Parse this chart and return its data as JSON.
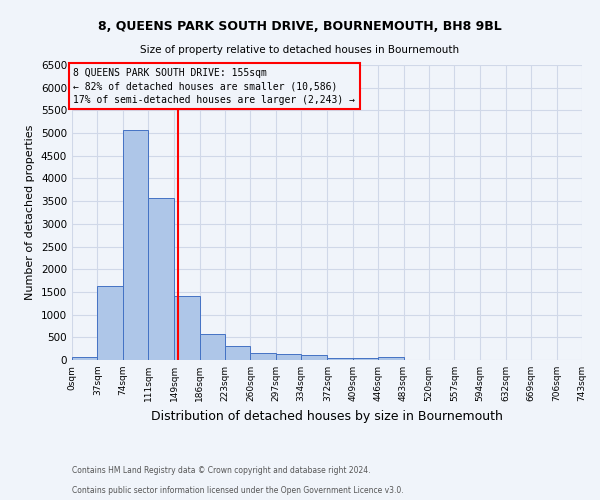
{
  "title1": "8, QUEENS PARK SOUTH DRIVE, BOURNEMOUTH, BH8 9BL",
  "title2": "Size of property relative to detached houses in Bournemouth",
  "xlabel": "Distribution of detached houses by size in Bournemouth",
  "ylabel": "Number of detached properties",
  "footnote1": "Contains HM Land Registry data © Crown copyright and database right 2024.",
  "footnote2": "Contains public sector information licensed under the Open Government Licence v3.0.",
  "annotation_line1": "8 QUEENS PARK SOUTH DRIVE: 155sqm",
  "annotation_line2": "← 82% of detached houses are smaller (10,586)",
  "annotation_line3": "17% of semi-detached houses are larger (2,243) →",
  "property_size": 155,
  "bin_edges": [
    0,
    37,
    74,
    111,
    149,
    186,
    223,
    260,
    297,
    334,
    372,
    409,
    446,
    483,
    520,
    557,
    594,
    632,
    669,
    706,
    743
  ],
  "bar_values": [
    75,
    1625,
    5075,
    3575,
    1400,
    575,
    300,
    150,
    125,
    100,
    50,
    40,
    60,
    0,
    0,
    0,
    0,
    0,
    0,
    0
  ],
  "bar_color": "#aec6e8",
  "bar_edge_color": "#4472c4",
  "vline_color": "red",
  "vline_x": 155,
  "annotation_box_color": "red",
  "grid_color": "#d0d8e8",
  "bg_color": "#f0f4fa",
  "ylim": [
    0,
    6500
  ],
  "yticks": [
    0,
    500,
    1000,
    1500,
    2000,
    2500,
    3000,
    3500,
    4000,
    4500,
    5000,
    5500,
    6000,
    6500
  ]
}
